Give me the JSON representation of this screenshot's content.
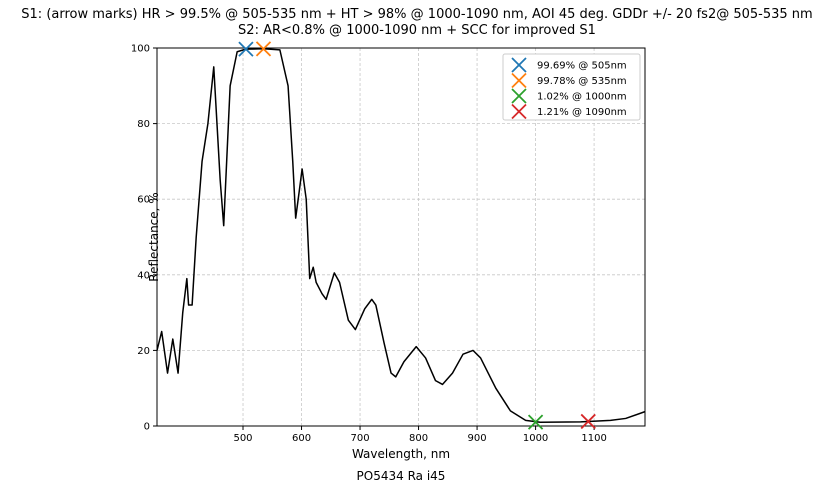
{
  "chart_data": {
    "type": "line",
    "title": [
      "S1: (arrow marks) HR > 99.5% @ 505-535 nm + HT > 98% @ 1000-1090 nm, AOI 45 deg. GDDr +/- 20 fs2@ 505-535 nm",
      "S2: AR<0.8% @ 1000-1090 nm + SCC for improved S1"
    ],
    "xlabel": "Wavelength, nm",
    "ylabel": "Reflectance, %",
    "footer": "PO5434 Ra i45",
    "xlim": [
      353,
      1187
    ],
    "ylim": [
      0,
      100
    ],
    "xticks": [
      500,
      600,
      700,
      800,
      900,
      1000,
      1100
    ],
    "yticks": [
      0,
      20,
      40,
      60,
      80,
      100
    ],
    "grid": true,
    "legend": "upper right",
    "series": [
      {
        "color": "#000000",
        "x": [
          353,
          361,
          371,
          380,
          389,
          397,
          404,
          407,
          413,
          420,
          430,
          440,
          450,
          461,
          467,
          478,
          490,
          505,
          535,
          563,
          577,
          585,
          590,
          596,
          601,
          608,
          614,
          620,
          625,
          635,
          642,
          656,
          665,
          680,
          692,
          708,
          720,
          727,
          741,
          753,
          761,
          775,
          796,
          812,
          829,
          841,
          858,
          876,
          893,
          906,
          932,
          957,
          983,
          1008,
          1077,
          1128,
          1154,
          1187
        ],
        "values": [
          20,
          25,
          14,
          23,
          14,
          30,
          39,
          32,
          32,
          50,
          70,
          80,
          95,
          65,
          53,
          90,
          99,
          99.7,
          99.8,
          99.5,
          90,
          70,
          55,
          62,
          68,
          60,
          39,
          42,
          38,
          35,
          33.5,
          40.5,
          38,
          28,
          25.5,
          31,
          33.5,
          32,
          22,
          14,
          13,
          17,
          21,
          18,
          12,
          11,
          14,
          19,
          20,
          18,
          10,
          4,
          1.5,
          1,
          1.1,
          1.5,
          2,
          3.8
        ]
      }
    ],
    "markers": [
      {
        "name": "99.69% @ 505nm",
        "color": "#1f77b4",
        "x": 505,
        "value": 99.69
      },
      {
        "name": "99.78% @ 535nm",
        "color": "#ff7f0e",
        "x": 535,
        "value": 99.78
      },
      {
        "name": "1.02% @ 1000nm",
        "color": "#2ca02c",
        "x": 1000,
        "value": 1.02
      },
      {
        "name": "1.21% @ 1090nm",
        "color": "#d62728",
        "x": 1090,
        "value": 1.21
      }
    ]
  }
}
